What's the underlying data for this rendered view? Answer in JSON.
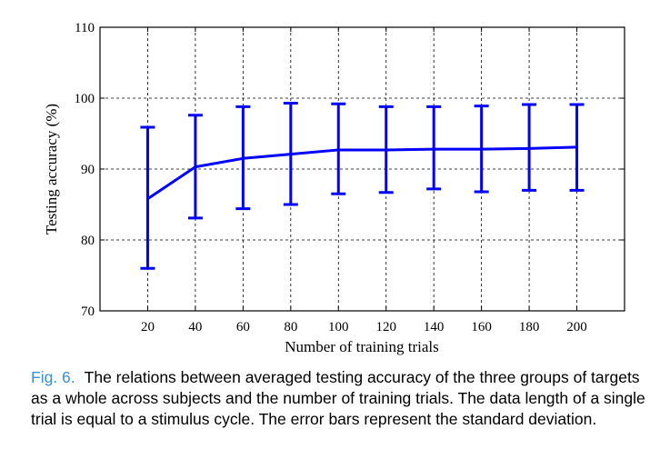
{
  "chart_data": {
    "type": "line",
    "x": [
      20,
      40,
      60,
      80,
      100,
      120,
      140,
      160,
      180,
      200
    ],
    "series": [
      {
        "values": [
          85.8,
          90.3,
          91.5,
          92.1,
          92.7,
          92.7,
          92.8,
          92.8,
          92.9,
          93.1
        ],
        "err_low": [
          76.0,
          83.1,
          84.4,
          85.0,
          86.5,
          86.7,
          87.2,
          86.8,
          87.0,
          87.0
        ],
        "err_high": [
          95.9,
          97.6,
          98.8,
          99.3,
          99.2,
          98.8,
          98.8,
          98.9,
          99.1,
          99.1
        ],
        "color": "#0000ff"
      }
    ],
    "xlabel": "Number of training trials",
    "ylabel": "Testing accuracy (%)",
    "xlim": [
      0,
      220
    ],
    "ylim": [
      70,
      110
    ],
    "xticks": [
      "20",
      "40",
      "60",
      "80",
      "100",
      "120",
      "140",
      "160",
      "180",
      "200"
    ],
    "yticks": [
      "70",
      "80",
      "90",
      "100",
      "110"
    ],
    "grid": true
  },
  "caption": {
    "label": "Fig. 6.",
    "text": "The relations between averaged testing accuracy of the three groups of targets as a whole across subjects and the number of training trials. The data length of a single trial is equal to a stimulus cycle. The error bars represent the standard deviation."
  }
}
